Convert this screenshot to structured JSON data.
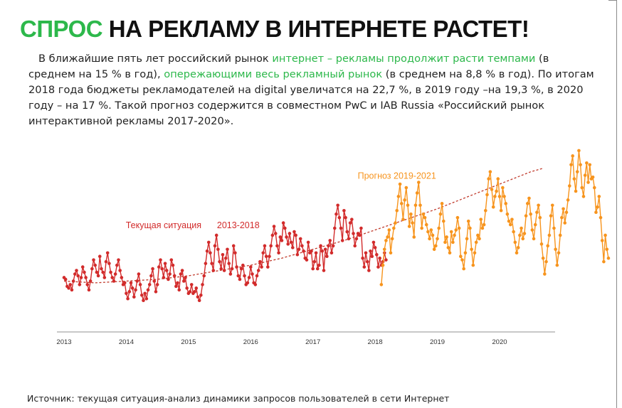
{
  "page": {
    "title_accent": "СПРОС",
    "title_rest": " НА РЕКЛАМУ В ИНТЕРНЕТЕ РАСТЕТ!",
    "intro": {
      "p1": "В ближайшие пять лет российский рынок ",
      "h1": "интернет – рекламы продолжит расти темпами",
      "p2": " (в среднем на 15 % в год), ",
      "h2": "опережающими весь рекламный рынок",
      "p3": " (в среднем на 8,8 % в год). По итогам 2018 года бюджеты рекламодателей на digital увеличатся на 22,7 %, в 2019 году –на 19,3 %, в 2020 году – на 17 %. Такой прогноз содержится в совместном PwC и IAB Russia «Российский рынок интерактивной рекламы 2017-2020»."
    },
    "source": "Источник: текущая ситуация-анализ динамики запросов пользователей в сети Интернет"
  },
  "colors": {
    "accent_green": "#2db84b",
    "current_red": "#d22b2b",
    "forecast_orange": "#f7941d",
    "trend_red": "#c0392b",
    "axis_gray": "#b5b5b5"
  },
  "chart_data": {
    "type": "line",
    "x_ticks": [
      "2013",
      "2014",
      "2015",
      "2016",
      "2017",
      "2018",
      "2019",
      "2020"
    ],
    "xlim": [
      2013,
      2020.95
    ],
    "ylim": [
      0,
      100
    ],
    "grid": false,
    "y_axis_visible": false,
    "annotations": [
      {
        "text": "Текущая ситуация",
        "color": "#d22b2b",
        "x": 2014.6,
        "y": 52
      },
      {
        "text": "2013-2018",
        "color": "#d22b2b",
        "x": 2015.8,
        "y": 52
      },
      {
        "text": "Прогноз 2019-2021",
        "color": "#f7941d",
        "x": 2018.35,
        "y": 80
      }
    ],
    "series": [
      {
        "name": "Текущая ситуация 2013-2018",
        "color": "#d22b2b",
        "x_start": 2013.0,
        "x_step": 0.025,
        "values": [
          24,
          23,
          19,
          18,
          20,
          17,
          22,
          26,
          28,
          25,
          20,
          24,
          30,
          27,
          24,
          20,
          17,
          22,
          29,
          34,
          31,
          27,
          25,
          36,
          29,
          27,
          24,
          33,
          38,
          32,
          27,
          24,
          22,
          26,
          31,
          34,
          28,
          24,
          20,
          21,
          15,
          12,
          16,
          21,
          18,
          13,
          17,
          22,
          26,
          20,
          14,
          11,
          15,
          12,
          17,
          20,
          25,
          29,
          22,
          16,
          20,
          30,
          34,
          29,
          24,
          32,
          28,
          23,
          26,
          34,
          31,
          25,
          19,
          21,
          17,
          26,
          28,
          22,
          24,
          18,
          15,
          16,
          20,
          15,
          16,
          18,
          13,
          11,
          14,
          20,
          25,
          32,
          39,
          44,
          38,
          32,
          28,
          42,
          48,
          40,
          33,
          29,
          37,
          28,
          35,
          40,
          32,
          26,
          29,
          42,
          38,
          30,
          25,
          23,
          29,
          31,
          25,
          20,
          21,
          24,
          30,
          26,
          21,
          20,
          25,
          28,
          33,
          30,
          38,
          42,
          36,
          30,
          36,
          42,
          48,
          53,
          49,
          42,
          38,
          47,
          45,
          55,
          52,
          47,
          43,
          49,
          44,
          41,
          50,
          48,
          37,
          40,
          46,
          42,
          39,
          35,
          34,
          44,
          38,
          39,
          29,
          33,
          38,
          29,
          31,
          42,
          39,
          28,
          40,
          36,
          42,
          45,
          38,
          42,
          52,
          60,
          65,
          58,
          52,
          45,
          62,
          58,
          50,
          46,
          55,
          57,
          49,
          42,
          46,
          49,
          48,
          52,
          35,
          30,
          38,
          33,
          28,
          39,
          36,
          44,
          41,
          37,
          30,
          35,
          31,
          33,
          38,
          34
        ]
      },
      {
        "name": "Прогноз 2019-2021",
        "color": "#f7941d",
        "x_start": 2018.1,
        "x_step": 0.025,
        "values": [
          20,
          31,
          40,
          45,
          47,
          51,
          38,
          46,
          52,
          55,
          62,
          70,
          77,
          66,
          57,
          68,
          75,
          65,
          53,
          60,
          55,
          47,
          65,
          72,
          78,
          65,
          52,
          60,
          58,
          54,
          50,
          46,
          51,
          48,
          40,
          42,
          46,
          52,
          60,
          66,
          56,
          44,
          47,
          41,
          38,
          50,
          44,
          48,
          51,
          58,
          52,
          36,
          34,
          29,
          38,
          46,
          56,
          52,
          40,
          31,
          38,
          44,
          48,
          46,
          57,
          52,
          54,
          62,
          71,
          80,
          84,
          74,
          64,
          70,
          73,
          80,
          70,
          62,
          75,
          70,
          66,
          60,
          56,
          54,
          57,
          50,
          44,
          38,
          41,
          48,
          52,
          46,
          49,
          59,
          66,
          69,
          60,
          51,
          46,
          54,
          61,
          65,
          58,
          43,
          35,
          26,
          33,
          42,
          48,
          59,
          65,
          52,
          40,
          31,
          38,
          48,
          58,
          63,
          55,
          61,
          68,
          76,
          88,
          93,
          80,
          73,
          84,
          96,
          88,
          75,
          70,
          82,
          89,
          78,
          88,
          80,
          81,
          75,
          61,
          64,
          70,
          58,
          45,
          33,
          48,
          40,
          35
        ]
      },
      {
        "name": "trend",
        "color": "#c0392b",
        "dashed": true,
        "x": [
          2013.0,
          2013.5,
          2014.0,
          2014.5,
          2015.0,
          2015.5,
          2016.0,
          2016.5,
          2017.0,
          2017.5,
          2018.0,
          2018.5,
          2019.0,
          2019.5,
          2020.0,
          2020.5,
          2020.7
        ],
        "values": [
          22,
          21,
          22,
          23,
          25,
          28,
          31,
          35,
          40,
          45,
          51,
          57,
          63,
          70,
          77,
          84,
          86
        ]
      }
    ]
  }
}
